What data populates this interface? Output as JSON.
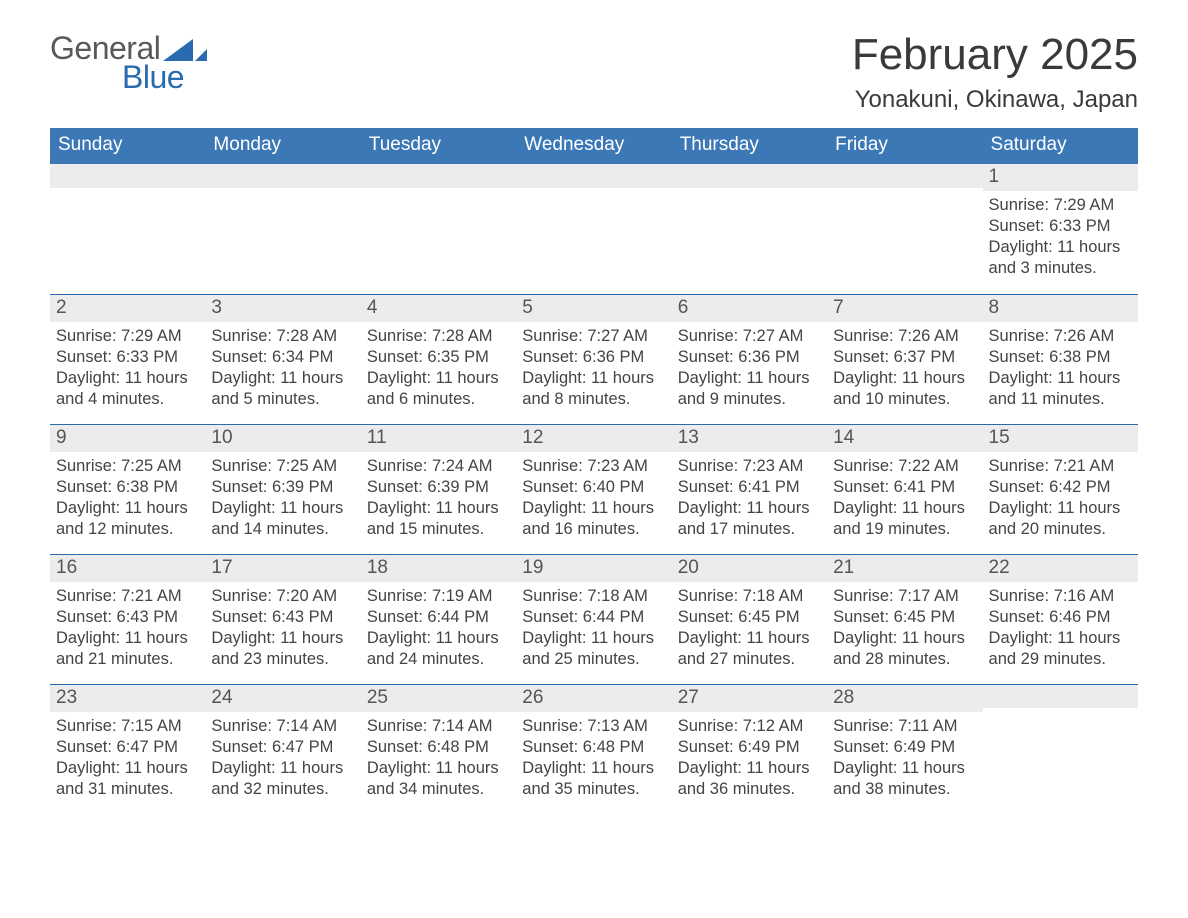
{
  "logo": {
    "word1": "General",
    "word2": "Blue",
    "sail_color": "#2a6bb0",
    "text_gray": "#595959"
  },
  "title": {
    "month": "February 2025",
    "location": "Yonakuni, Okinawa, Japan"
  },
  "colors": {
    "header_bg": "#3d78b6",
    "accent": "#2a6bb0",
    "date_bg": "#ececec",
    "text": "#3a3a3a",
    "page_bg": "#ffffff"
  },
  "daynames": [
    "Sunday",
    "Monday",
    "Tuesday",
    "Wednesday",
    "Thursday",
    "Friday",
    "Saturday"
  ],
  "weeks": [
    [
      null,
      null,
      null,
      null,
      null,
      null,
      {
        "d": "1",
        "sunrise": "7:29 AM",
        "sunset": "6:33 PM",
        "daylight": "11 hours and 3 minutes."
      }
    ],
    [
      {
        "d": "2",
        "sunrise": "7:29 AM",
        "sunset": "6:33 PM",
        "daylight": "11 hours and 4 minutes."
      },
      {
        "d": "3",
        "sunrise": "7:28 AM",
        "sunset": "6:34 PM",
        "daylight": "11 hours and 5 minutes."
      },
      {
        "d": "4",
        "sunrise": "7:28 AM",
        "sunset": "6:35 PM",
        "daylight": "11 hours and 6 minutes."
      },
      {
        "d": "5",
        "sunrise": "7:27 AM",
        "sunset": "6:36 PM",
        "daylight": "11 hours and 8 minutes."
      },
      {
        "d": "6",
        "sunrise": "7:27 AM",
        "sunset": "6:36 PM",
        "daylight": "11 hours and 9 minutes."
      },
      {
        "d": "7",
        "sunrise": "7:26 AM",
        "sunset": "6:37 PM",
        "daylight": "11 hours and 10 minutes."
      },
      {
        "d": "8",
        "sunrise": "7:26 AM",
        "sunset": "6:38 PM",
        "daylight": "11 hours and 11 minutes."
      }
    ],
    [
      {
        "d": "9",
        "sunrise": "7:25 AM",
        "sunset": "6:38 PM",
        "daylight": "11 hours and 12 minutes."
      },
      {
        "d": "10",
        "sunrise": "7:25 AM",
        "sunset": "6:39 PM",
        "daylight": "11 hours and 14 minutes."
      },
      {
        "d": "11",
        "sunrise": "7:24 AM",
        "sunset": "6:39 PM",
        "daylight": "11 hours and 15 minutes."
      },
      {
        "d": "12",
        "sunrise": "7:23 AM",
        "sunset": "6:40 PM",
        "daylight": "11 hours and 16 minutes."
      },
      {
        "d": "13",
        "sunrise": "7:23 AM",
        "sunset": "6:41 PM",
        "daylight": "11 hours and 17 minutes."
      },
      {
        "d": "14",
        "sunrise": "7:22 AM",
        "sunset": "6:41 PM",
        "daylight": "11 hours and 19 minutes."
      },
      {
        "d": "15",
        "sunrise": "7:21 AM",
        "sunset": "6:42 PM",
        "daylight": "11 hours and 20 minutes."
      }
    ],
    [
      {
        "d": "16",
        "sunrise": "7:21 AM",
        "sunset": "6:43 PM",
        "daylight": "11 hours and 21 minutes."
      },
      {
        "d": "17",
        "sunrise": "7:20 AM",
        "sunset": "6:43 PM",
        "daylight": "11 hours and 23 minutes."
      },
      {
        "d": "18",
        "sunrise": "7:19 AM",
        "sunset": "6:44 PM",
        "daylight": "11 hours and 24 minutes."
      },
      {
        "d": "19",
        "sunrise": "7:18 AM",
        "sunset": "6:44 PM",
        "daylight": "11 hours and 25 minutes."
      },
      {
        "d": "20",
        "sunrise": "7:18 AM",
        "sunset": "6:45 PM",
        "daylight": "11 hours and 27 minutes."
      },
      {
        "d": "21",
        "sunrise": "7:17 AM",
        "sunset": "6:45 PM",
        "daylight": "11 hours and 28 minutes."
      },
      {
        "d": "22",
        "sunrise": "7:16 AM",
        "sunset": "6:46 PM",
        "daylight": "11 hours and 29 minutes."
      }
    ],
    [
      {
        "d": "23",
        "sunrise": "7:15 AM",
        "sunset": "6:47 PM",
        "daylight": "11 hours and 31 minutes."
      },
      {
        "d": "24",
        "sunrise": "7:14 AM",
        "sunset": "6:47 PM",
        "daylight": "11 hours and 32 minutes."
      },
      {
        "d": "25",
        "sunrise": "7:14 AM",
        "sunset": "6:48 PM",
        "daylight": "11 hours and 34 minutes."
      },
      {
        "d": "26",
        "sunrise": "7:13 AM",
        "sunset": "6:48 PM",
        "daylight": "11 hours and 35 minutes."
      },
      {
        "d": "27",
        "sunrise": "7:12 AM",
        "sunset": "6:49 PM",
        "daylight": "11 hours and 36 minutes."
      },
      {
        "d": "28",
        "sunrise": "7:11 AM",
        "sunset": "6:49 PM",
        "daylight": "11 hours and 38 minutes."
      },
      null
    ]
  ],
  "labels": {
    "sunrise": "Sunrise: ",
    "sunset": "Sunset: ",
    "daylight": "Daylight: "
  }
}
